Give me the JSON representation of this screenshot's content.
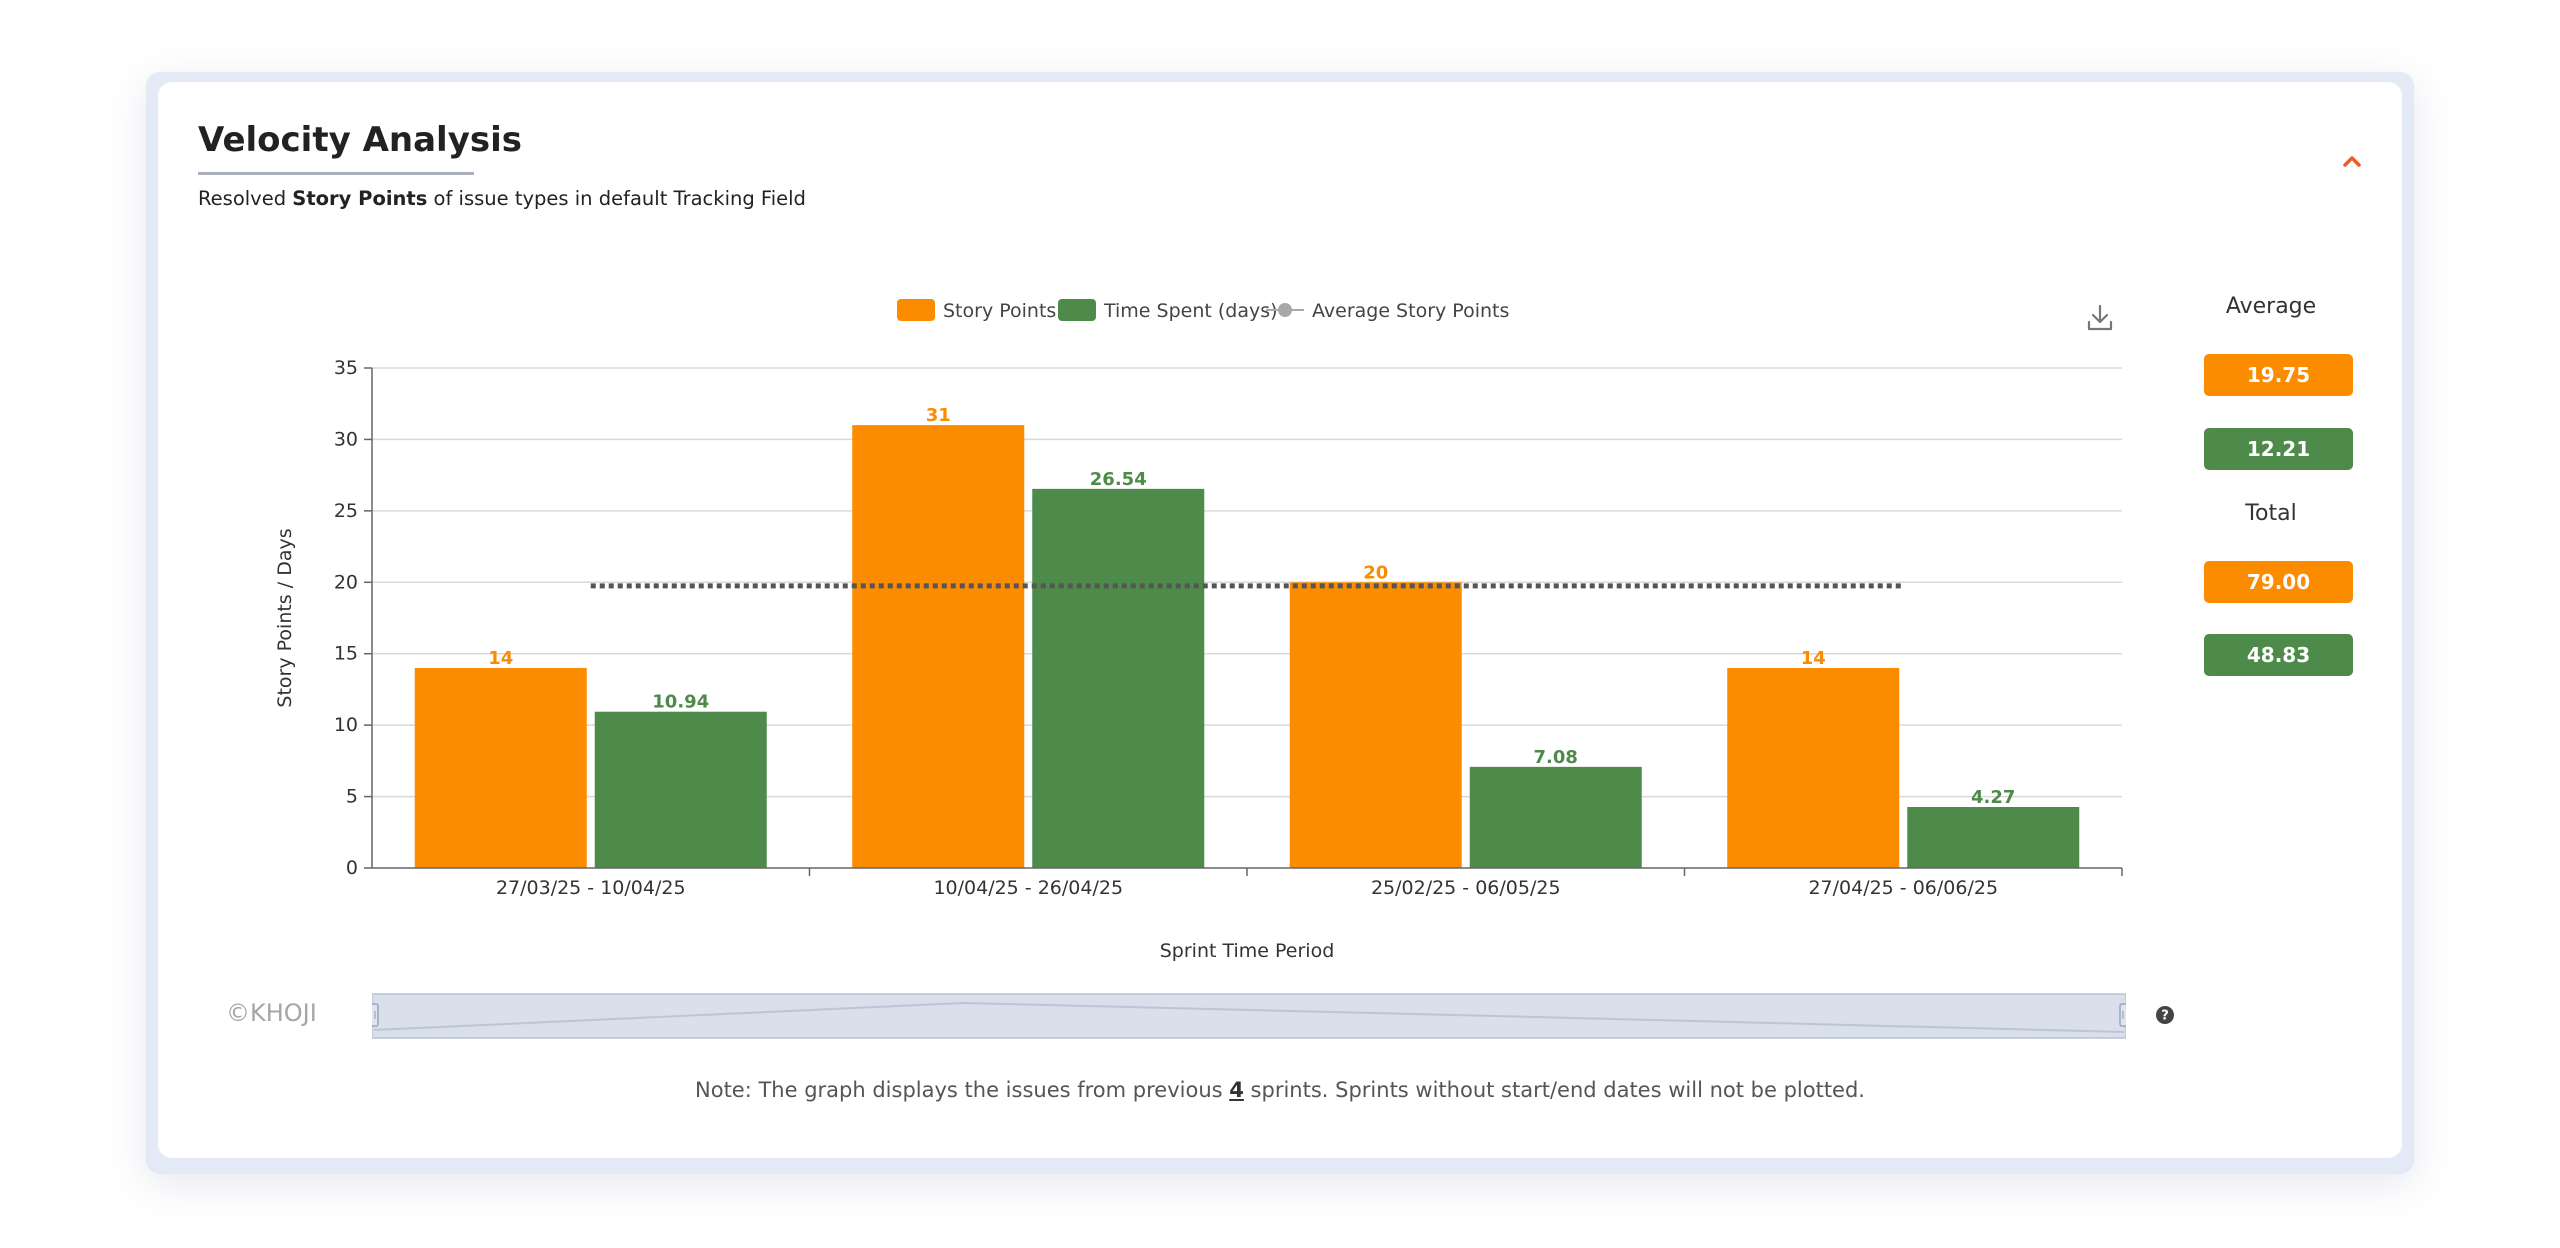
{
  "header": {
    "title": "Velocity Analysis",
    "subtitle_pre": "Resolved ",
    "subtitle_bold": "Story Points",
    "subtitle_post": " of issue types in default Tracking Field"
  },
  "colors": {
    "story_points": "#fb8c00",
    "time_spent": "#4e8a4a",
    "average_line": "#555555",
    "legend_average_marker": "#a8a8a8",
    "accent": "#f05a28"
  },
  "icons": {
    "collapse": "chevron-up-icon",
    "download": "download-icon",
    "help": "question-circle-icon"
  },
  "chart_data": {
    "type": "bar",
    "categories": [
      "27/03/25 - 10/04/25",
      "10/04/25 - 26/04/25",
      "25/02/25 - 06/05/25",
      "27/04/25 - 06/06/25"
    ],
    "series": [
      {
        "name": "Story Points",
        "values": [
          14,
          31,
          20,
          14
        ],
        "labels": [
          "14",
          "31",
          "20",
          "14"
        ]
      },
      {
        "name": "Time Spent (days)",
        "values": [
          10.94,
          26.54,
          7.08,
          4.27
        ],
        "labels": [
          "10.94",
          "26.54",
          "7.08",
          "4.27"
        ]
      }
    ],
    "average_line": {
      "name": "Average Story Points",
      "value": 19.75,
      "style": "dotted"
    },
    "xlabel": "Sprint Time Period",
    "ylabel": "Story Points / Days",
    "ylim": [
      0,
      35
    ],
    "yticks": [
      0,
      5,
      10,
      15,
      20,
      25,
      30,
      35
    ],
    "grid": true,
    "legend_position": "top-center"
  },
  "summary": {
    "average_label": "Average",
    "average_story_points": "19.75",
    "average_time_spent": "12.21",
    "total_label": "Total",
    "total_story_points": "79.00",
    "total_time_spent": "48.83"
  },
  "footer": {
    "brand": "©KHOJI",
    "note_pre": "Note: The graph displays the issues from previous ",
    "note_count": "4",
    "note_post": " sprints. Sprints without start/end dates will not be plotted."
  }
}
